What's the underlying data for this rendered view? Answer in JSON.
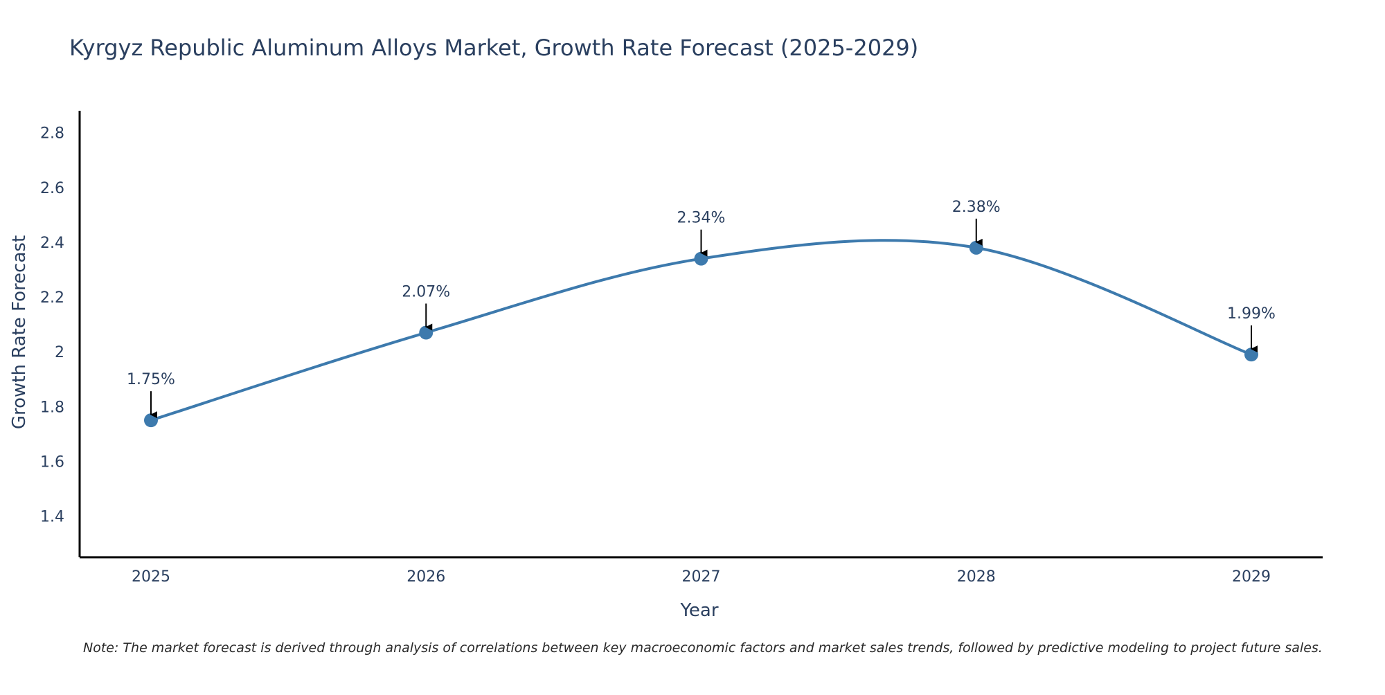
{
  "chart_data": {
    "type": "line",
    "title": "Kyrgyz Republic Aluminum Alloys Market, Growth Rate Forecast (2025-2029)",
    "xlabel": "Year",
    "ylabel": "Growth Rate Forecast",
    "categories": [
      "2025",
      "2026",
      "2027",
      "2028",
      "2029"
    ],
    "series": [
      {
        "name": "Growth Rate Forecast",
        "values": [
          1.75,
          2.07,
          2.34,
          2.38,
          1.99
        ],
        "labels": [
          "1.75%",
          "2.07%",
          "2.34%",
          "2.38%",
          "1.99%"
        ]
      }
    ],
    "ylim": [
      1.25,
      2.88
    ],
    "yticks": [
      1.4,
      1.6,
      1.8,
      2,
      2.2,
      2.4,
      2.6,
      2.8
    ],
    "ytick_labels": [
      "1.4",
      "1.6",
      "1.8",
      "2",
      "2.2",
      "2.4",
      "2.6",
      "2.8"
    ],
    "grid": false,
    "line_color": "#3d7aad",
    "marker_color": "#3d7aad",
    "arrow_color": "#000000",
    "axis_color": "#000000",
    "note": "Note: The market forecast is derived through analysis of correlations between key macroeconomic factors and market sales trends, followed by predictive modeling to project future sales."
  }
}
